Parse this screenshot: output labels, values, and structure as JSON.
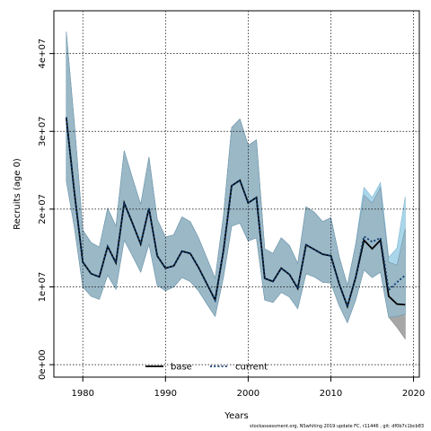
{
  "chart_data": {
    "type": "line",
    "xlabel": "Years",
    "ylabel": "Recruits (age 0)",
    "xlim": [
      1976.5,
      2020.7
    ],
    "ylim": [
      -1600000,
      45500000
    ],
    "x_ticks": [
      1980,
      1990,
      2000,
      2010,
      2020
    ],
    "y_ticks": [
      {
        "value": 0,
        "label": "0e+00"
      },
      {
        "value": 10000000,
        "label": "1e+07"
      },
      {
        "value": 20000000,
        "label": "2e+07"
      },
      {
        "value": 30000000,
        "label": "3e+07"
      },
      {
        "value": 40000000,
        "label": "4e+07"
      }
    ],
    "grid": true,
    "legend_position": "bottom-center",
    "x": [
      1978,
      1979,
      1980,
      1981,
      1982,
      1983,
      1984,
      1985,
      1986,
      1987,
      1988,
      1989,
      1990,
      1991,
      1992,
      1993,
      1994,
      1995,
      1996,
      1997,
      1998,
      1999,
      2000,
      2001,
      2002,
      2003,
      2004,
      2005,
      2006,
      2007,
      2008,
      2009,
      2010,
      2011,
      2012,
      2013,
      2014,
      2015,
      2016,
      2017,
      2018,
      2019
    ],
    "series": [
      {
        "name": "base",
        "color": "#000000",
        "dash": "solid",
        "band_color": "#a6a6a6",
        "values": [
          31800000,
          22000000,
          13200000,
          11700000,
          11300000,
          15200000,
          13100000,
          20800000,
          18200000,
          15500000,
          20100000,
          14000000,
          12400000,
          12700000,
          14600000,
          14300000,
          12500000,
          10400000,
          8300000,
          14600000,
          23000000,
          23700000,
          20800000,
          21500000,
          11100000,
          10700000,
          12400000,
          11600000,
          9800000,
          15400000,
          14800000,
          14200000,
          14000000,
          10400000,
          7500000,
          11200000,
          16000000,
          14900000,
          16000000,
          8800000,
          7800000,
          7700000
        ],
        "lower": [
          23700000,
          17500000,
          10000000,
          8800000,
          8400000,
          11500000,
          9700000,
          16000000,
          14000000,
          11900000,
          15500000,
          10200000,
          9500000,
          10000000,
          11200000,
          10700000,
          9500000,
          7800000,
          6200000,
          11200000,
          17800000,
          18200000,
          15900000,
          16300000,
          8300000,
          8000000,
          9300000,
          8700000,
          7200000,
          11700000,
          11300000,
          10600000,
          10500000,
          7600000,
          5400000,
          8300000,
          12200000,
          11200000,
          11900000,
          6100000,
          4800000,
          3300000
        ],
        "upper": [
          42800000,
          30800000,
          17300000,
          15700000,
          15100000,
          20100000,
          17800000,
          27500000,
          24000000,
          20600000,
          26700000,
          18700000,
          16400000,
          16700000,
          19000000,
          18400000,
          16300000,
          13700000,
          11100000,
          19100000,
          30500000,
          31600000,
          28200000,
          28900000,
          14900000,
          14300000,
          16300000,
          15300000,
          13000000,
          20300000,
          19600000,
          18400000,
          18900000,
          13900000,
          10200000,
          15500000,
          21800000,
          20800000,
          22800000,
          13200000,
          12800000,
          17500000
        ]
      },
      {
        "name": "current",
        "color": "#0b3a6e",
        "dash": "dotted",
        "band_color": "#a9d6ea",
        "values": [
          31800000,
          22000000,
          13200000,
          11700000,
          11300000,
          15200000,
          13100000,
          20800000,
          18200000,
          15500000,
          20100000,
          14000000,
          12400000,
          12700000,
          14600000,
          14300000,
          12500000,
          10400000,
          8300000,
          14600000,
          23000000,
          23700000,
          20800000,
          21500000,
          11100000,
          10700000,
          12400000,
          11600000,
          9800000,
          15400000,
          14800000,
          14200000,
          14000000,
          10400000,
          7500000,
          11200000,
          16500000,
          15800000,
          16300000,
          9600000,
          10600000,
          11500000
        ],
        "lower": [
          23700000,
          17500000,
          10000000,
          8800000,
          8400000,
          11500000,
          9700000,
          16000000,
          14000000,
          11900000,
          15500000,
          10200000,
          9500000,
          10000000,
          11200000,
          10700000,
          9500000,
          7800000,
          6200000,
          11200000,
          17800000,
          18200000,
          15900000,
          16300000,
          8300000,
          8000000,
          9300000,
          8700000,
          7200000,
          11700000,
          11300000,
          10600000,
          10500000,
          7600000,
          5400000,
          8300000,
          12200000,
          11200000,
          11900000,
          6100000,
          6200000,
          6500000
        ],
        "upper": [
          42800000,
          30800000,
          17300000,
          15700000,
          15100000,
          20100000,
          17800000,
          27500000,
          24000000,
          20600000,
          26700000,
          18700000,
          16400000,
          16700000,
          19000000,
          18400000,
          16300000,
          13700000,
          11100000,
          19100000,
          30500000,
          31600000,
          28200000,
          28900000,
          14900000,
          14300000,
          16300000,
          15300000,
          13000000,
          20300000,
          19600000,
          18400000,
          18900000,
          13900000,
          10200000,
          15500000,
          22800000,
          21500000,
          23400000,
          13800000,
          15000000,
          21600000
        ]
      }
    ],
    "overlap_band_color": "#9bb8c7",
    "footer": "stockassessment.org, NSwhiting 2019 update FC, r11446 , git: df0b7c1bcb83"
  }
}
